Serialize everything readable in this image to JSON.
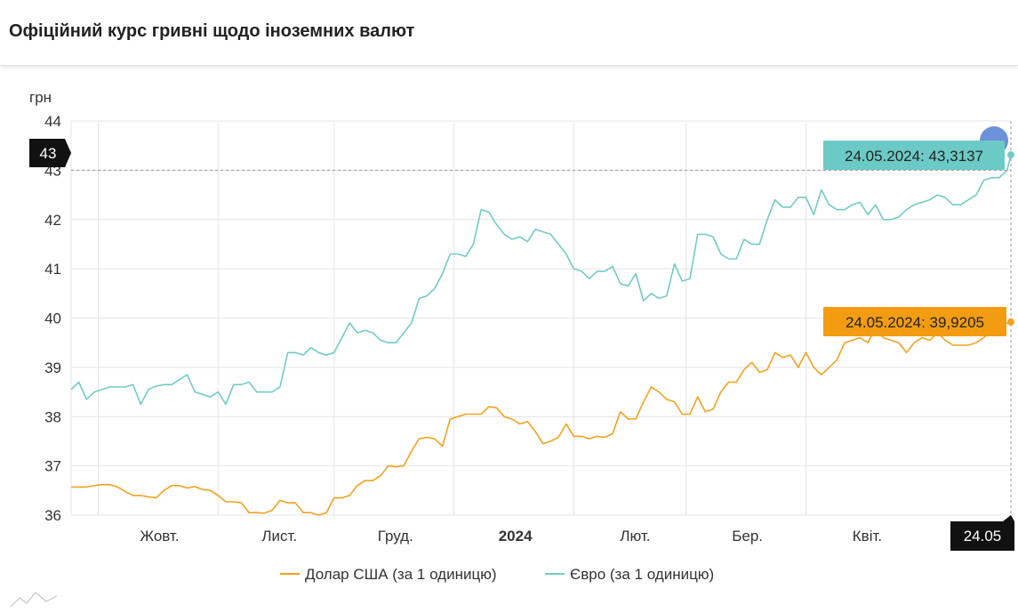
{
  "page": {
    "title": "Офіційний курс гривні щодо іноземних валют"
  },
  "chart_data": {
    "type": "line",
    "ylabel": "грн",
    "ylim": [
      36,
      44
    ],
    "yticks": [
      36,
      37,
      38,
      39,
      40,
      41,
      42,
      43,
      44
    ],
    "xlim": [
      "2023-09-24",
      "2024-05-24"
    ],
    "xticks": [
      {
        "date": "2023-10-01",
        "label": "Жовт.",
        "bold": false
      },
      {
        "date": "2023-11-01",
        "label": "Лист.",
        "bold": false
      },
      {
        "date": "2023-12-01",
        "label": "Груд.",
        "bold": false
      },
      {
        "date": "2024-01-01",
        "label": "2024",
        "bold": true
      },
      {
        "date": "2024-02-01",
        "label": "Лют.",
        "bold": false
      },
      {
        "date": "2024-03-01",
        "label": "Бер.",
        "bold": false
      },
      {
        "date": "2024-04-01",
        "label": "Квіт.",
        "bold": false
      }
    ],
    "series": [
      {
        "name": "Долар США (за 1 одиницю)",
        "color": "#f0a320",
        "points": [
          [
            "2023-09-24",
            36.57
          ],
          [
            "2023-09-26",
            36.57
          ],
          [
            "2023-09-28",
            36.57
          ],
          [
            "2023-09-30",
            36.6
          ],
          [
            "2023-10-02",
            36.62
          ],
          [
            "2023-10-04",
            36.62
          ],
          [
            "2023-10-06",
            36.57
          ],
          [
            "2023-10-08",
            36.48
          ],
          [
            "2023-10-10",
            36.4
          ],
          [
            "2023-10-12",
            36.4
          ],
          [
            "2023-10-14",
            36.37
          ],
          [
            "2023-10-16",
            36.35
          ],
          [
            "2023-10-18",
            36.5
          ],
          [
            "2023-10-20",
            36.6
          ],
          [
            "2023-10-22",
            36.6
          ],
          [
            "2023-10-24",
            36.55
          ],
          [
            "2023-10-26",
            36.58
          ],
          [
            "2023-10-28",
            36.52
          ],
          [
            "2023-10-30",
            36.5
          ],
          [
            "2023-11-01",
            36.4
          ],
          [
            "2023-11-03",
            36.27
          ],
          [
            "2023-11-05",
            36.27
          ],
          [
            "2023-11-07",
            36.25
          ],
          [
            "2023-11-09",
            36.05
          ],
          [
            "2023-11-11",
            36.05
          ],
          [
            "2023-11-13",
            36.04
          ],
          [
            "2023-11-15",
            36.1
          ],
          [
            "2023-11-17",
            36.3
          ],
          [
            "2023-11-19",
            36.25
          ],
          [
            "2023-11-21",
            36.25
          ],
          [
            "2023-11-23",
            36.05
          ],
          [
            "2023-11-25",
            36.05
          ],
          [
            "2023-11-27",
            36.0
          ],
          [
            "2023-11-29",
            36.05
          ],
          [
            "2023-12-01",
            36.35
          ],
          [
            "2023-12-03",
            36.35
          ],
          [
            "2023-12-05",
            36.4
          ],
          [
            "2023-12-07",
            36.6
          ],
          [
            "2023-12-09",
            36.7
          ],
          [
            "2023-12-11",
            36.7
          ],
          [
            "2023-12-13",
            36.8
          ],
          [
            "2023-12-15",
            37.0
          ],
          [
            "2023-12-17",
            36.98
          ],
          [
            "2023-12-19",
            37.0
          ],
          [
            "2023-12-21",
            37.3
          ],
          [
            "2023-12-23",
            37.55
          ],
          [
            "2023-12-25",
            37.58
          ],
          [
            "2023-12-27",
            37.55
          ],
          [
            "2023-12-29",
            37.4
          ],
          [
            "2023-12-31",
            37.95
          ],
          [
            "2024-01-02",
            38.0
          ],
          [
            "2024-01-04",
            38.05
          ],
          [
            "2024-01-06",
            38.05
          ],
          [
            "2024-01-08",
            38.05
          ],
          [
            "2024-01-10",
            38.2
          ],
          [
            "2024-01-12",
            38.18
          ],
          [
            "2024-01-14",
            38.0
          ],
          [
            "2024-01-16",
            37.95
          ],
          [
            "2024-01-18",
            37.85
          ],
          [
            "2024-01-20",
            37.9
          ],
          [
            "2024-01-22",
            37.7
          ],
          [
            "2024-01-24",
            37.45
          ],
          [
            "2024-01-26",
            37.5
          ],
          [
            "2024-01-28",
            37.58
          ],
          [
            "2024-01-30",
            37.85
          ],
          [
            "2024-02-01",
            37.6
          ],
          [
            "2024-02-03",
            37.6
          ],
          [
            "2024-02-05",
            37.55
          ],
          [
            "2024-02-07",
            37.6
          ],
          [
            "2024-02-09",
            37.58
          ],
          [
            "2024-02-11",
            37.65
          ],
          [
            "2024-02-13",
            38.1
          ],
          [
            "2024-02-15",
            37.95
          ],
          [
            "2024-02-17",
            37.95
          ],
          [
            "2024-02-19",
            38.3
          ],
          [
            "2024-02-21",
            38.6
          ],
          [
            "2024-02-23",
            38.5
          ],
          [
            "2024-02-25",
            38.35
          ],
          [
            "2024-02-27",
            38.3
          ],
          [
            "2024-02-29",
            38.05
          ],
          [
            "2024-03-02",
            38.05
          ],
          [
            "2024-03-04",
            38.4
          ],
          [
            "2024-03-06",
            38.1
          ],
          [
            "2024-03-08",
            38.15
          ],
          [
            "2024-03-10",
            38.5
          ],
          [
            "2024-03-12",
            38.7
          ],
          [
            "2024-03-14",
            38.7
          ],
          [
            "2024-03-16",
            38.95
          ],
          [
            "2024-03-18",
            39.1
          ],
          [
            "2024-03-20",
            38.9
          ],
          [
            "2024-03-22",
            38.95
          ],
          [
            "2024-03-24",
            39.3
          ],
          [
            "2024-03-26",
            39.2
          ],
          [
            "2024-03-28",
            39.25
          ],
          [
            "2024-03-30",
            39.0
          ],
          [
            "2024-04-01",
            39.3
          ],
          [
            "2024-04-03",
            39.0
          ],
          [
            "2024-04-05",
            38.85
          ],
          [
            "2024-04-07",
            39.0
          ],
          [
            "2024-04-09",
            39.15
          ],
          [
            "2024-04-11",
            39.5
          ],
          [
            "2024-04-13",
            39.55
          ],
          [
            "2024-04-15",
            39.6
          ],
          [
            "2024-04-17",
            39.5
          ],
          [
            "2024-04-19",
            39.8
          ],
          [
            "2024-04-21",
            39.6
          ],
          [
            "2024-04-23",
            39.55
          ],
          [
            "2024-04-25",
            39.5
          ],
          [
            "2024-04-27",
            39.3
          ],
          [
            "2024-04-29",
            39.5
          ],
          [
            "2024-05-01",
            39.6
          ],
          [
            "2024-05-03",
            39.55
          ],
          [
            "2024-05-05",
            39.7
          ],
          [
            "2024-05-07",
            39.55
          ],
          [
            "2024-05-09",
            39.45
          ],
          [
            "2024-05-11",
            39.45
          ],
          [
            "2024-05-13",
            39.45
          ],
          [
            "2024-05-15",
            39.5
          ],
          [
            "2024-05-17",
            39.6
          ],
          [
            "2024-05-19",
            39.75
          ],
          [
            "2024-05-21",
            39.8
          ],
          [
            "2024-05-23",
            39.9
          ],
          [
            "2024-05-24",
            39.9205
          ]
        ]
      },
      {
        "name": "Євро (за 1 одиницю)",
        "color": "#72cbc7",
        "points": [
          [
            "2023-09-24",
            38.55
          ],
          [
            "2023-09-26",
            38.7
          ],
          [
            "2023-09-28",
            38.35
          ],
          [
            "2023-09-30",
            38.5
          ],
          [
            "2023-10-02",
            38.55
          ],
          [
            "2023-10-04",
            38.6
          ],
          [
            "2023-10-06",
            38.6
          ],
          [
            "2023-10-08",
            38.6
          ],
          [
            "2023-10-10",
            38.65
          ],
          [
            "2023-10-12",
            38.25
          ],
          [
            "2023-10-14",
            38.55
          ],
          [
            "2023-10-16",
            38.62
          ],
          [
            "2023-10-18",
            38.65
          ],
          [
            "2023-10-20",
            38.65
          ],
          [
            "2023-10-22",
            38.75
          ],
          [
            "2023-10-24",
            38.85
          ],
          [
            "2023-10-26",
            38.5
          ],
          [
            "2023-10-28",
            38.45
          ],
          [
            "2023-10-30",
            38.4
          ],
          [
            "2023-11-01",
            38.5
          ],
          [
            "2023-11-03",
            38.25
          ],
          [
            "2023-11-05",
            38.65
          ],
          [
            "2023-11-07",
            38.65
          ],
          [
            "2023-11-09",
            38.7
          ],
          [
            "2023-11-11",
            38.5
          ],
          [
            "2023-11-13",
            38.5
          ],
          [
            "2023-11-15",
            38.5
          ],
          [
            "2023-11-17",
            38.6
          ],
          [
            "2023-11-19",
            39.3
          ],
          [
            "2023-11-21",
            39.3
          ],
          [
            "2023-11-23",
            39.25
          ],
          [
            "2023-11-25",
            39.4
          ],
          [
            "2023-11-27",
            39.3
          ],
          [
            "2023-11-29",
            39.25
          ],
          [
            "2023-12-01",
            39.3
          ],
          [
            "2023-12-03",
            39.6
          ],
          [
            "2023-12-05",
            39.9
          ],
          [
            "2023-12-07",
            39.7
          ],
          [
            "2023-12-09",
            39.75
          ],
          [
            "2023-12-11",
            39.7
          ],
          [
            "2023-12-13",
            39.55
          ],
          [
            "2023-12-15",
            39.5
          ],
          [
            "2023-12-17",
            39.5
          ],
          [
            "2023-12-19",
            39.7
          ],
          [
            "2023-12-21",
            39.9
          ],
          [
            "2023-12-23",
            40.4
          ],
          [
            "2023-12-25",
            40.45
          ],
          [
            "2023-12-27",
            40.6
          ],
          [
            "2023-12-29",
            40.9
          ],
          [
            "2023-12-31",
            41.3
          ],
          [
            "2024-01-02",
            41.3
          ],
          [
            "2024-01-04",
            41.25
          ],
          [
            "2024-01-06",
            41.5
          ],
          [
            "2024-01-08",
            42.2
          ],
          [
            "2024-01-10",
            42.15
          ],
          [
            "2024-01-12",
            41.9
          ],
          [
            "2024-01-14",
            41.7
          ],
          [
            "2024-01-16",
            41.6
          ],
          [
            "2024-01-18",
            41.65
          ],
          [
            "2024-01-20",
            41.55
          ],
          [
            "2024-01-22",
            41.8
          ],
          [
            "2024-01-24",
            41.75
          ],
          [
            "2024-01-26",
            41.7
          ],
          [
            "2024-01-28",
            41.5
          ],
          [
            "2024-01-30",
            41.3
          ],
          [
            "2024-02-01",
            41.0
          ],
          [
            "2024-02-03",
            40.95
          ],
          [
            "2024-02-05",
            40.8
          ],
          [
            "2024-02-07",
            40.95
          ],
          [
            "2024-02-09",
            40.95
          ],
          [
            "2024-02-11",
            41.05
          ],
          [
            "2024-02-13",
            40.7
          ],
          [
            "2024-02-15",
            40.65
          ],
          [
            "2024-02-17",
            40.9
          ],
          [
            "2024-02-19",
            40.35
          ],
          [
            "2024-02-21",
            40.5
          ],
          [
            "2024-02-23",
            40.4
          ],
          [
            "2024-02-25",
            40.45
          ],
          [
            "2024-02-27",
            41.1
          ],
          [
            "2024-02-29",
            40.75
          ],
          [
            "2024-03-02",
            40.8
          ],
          [
            "2024-03-04",
            41.7
          ],
          [
            "2024-03-06",
            41.7
          ],
          [
            "2024-03-08",
            41.65
          ],
          [
            "2024-03-10",
            41.3
          ],
          [
            "2024-03-12",
            41.2
          ],
          [
            "2024-03-14",
            41.2
          ],
          [
            "2024-03-16",
            41.6
          ],
          [
            "2024-03-18",
            41.5
          ],
          [
            "2024-03-20",
            41.5
          ],
          [
            "2024-03-22",
            42.0
          ],
          [
            "2024-03-24",
            42.4
          ],
          [
            "2024-03-26",
            42.25
          ],
          [
            "2024-03-28",
            42.25
          ],
          [
            "2024-03-30",
            42.45
          ],
          [
            "2024-04-01",
            42.45
          ],
          [
            "2024-04-03",
            42.1
          ],
          [
            "2024-04-05",
            42.6
          ],
          [
            "2024-04-07",
            42.3
          ],
          [
            "2024-04-09",
            42.2
          ],
          [
            "2024-04-11",
            42.2
          ],
          [
            "2024-04-13",
            42.3
          ],
          [
            "2024-04-15",
            42.35
          ],
          [
            "2024-04-17",
            42.1
          ],
          [
            "2024-04-19",
            42.3
          ],
          [
            "2024-04-21",
            42.0
          ],
          [
            "2024-04-23",
            42.0
          ],
          [
            "2024-04-25",
            42.05
          ],
          [
            "2024-04-27",
            42.2
          ],
          [
            "2024-04-29",
            42.3
          ],
          [
            "2024-05-01",
            42.35
          ],
          [
            "2024-05-03",
            42.4
          ],
          [
            "2024-05-05",
            42.5
          ],
          [
            "2024-05-07",
            42.45
          ],
          [
            "2024-05-09",
            42.3
          ],
          [
            "2024-05-11",
            42.3
          ],
          [
            "2024-05-13",
            42.4
          ],
          [
            "2024-05-15",
            42.5
          ],
          [
            "2024-05-17",
            42.8
          ],
          [
            "2024-05-19",
            42.85
          ],
          [
            "2024-05-21",
            42.85
          ],
          [
            "2024-05-23",
            43.0
          ],
          [
            "2024-05-24",
            43.3137
          ]
        ]
      }
    ],
    "crosshair": {
      "y_label": "43",
      "x_label": "24.05"
    },
    "tooltips": [
      {
        "series": 1,
        "text": "24.05.2024: 43,3137",
        "bg": "#6ccac6"
      },
      {
        "series": 0,
        "text": "24.05.2024: 39,9205",
        "bg": "#f39c12"
      }
    ],
    "legend": "bottom-center",
    "grid": true
  }
}
